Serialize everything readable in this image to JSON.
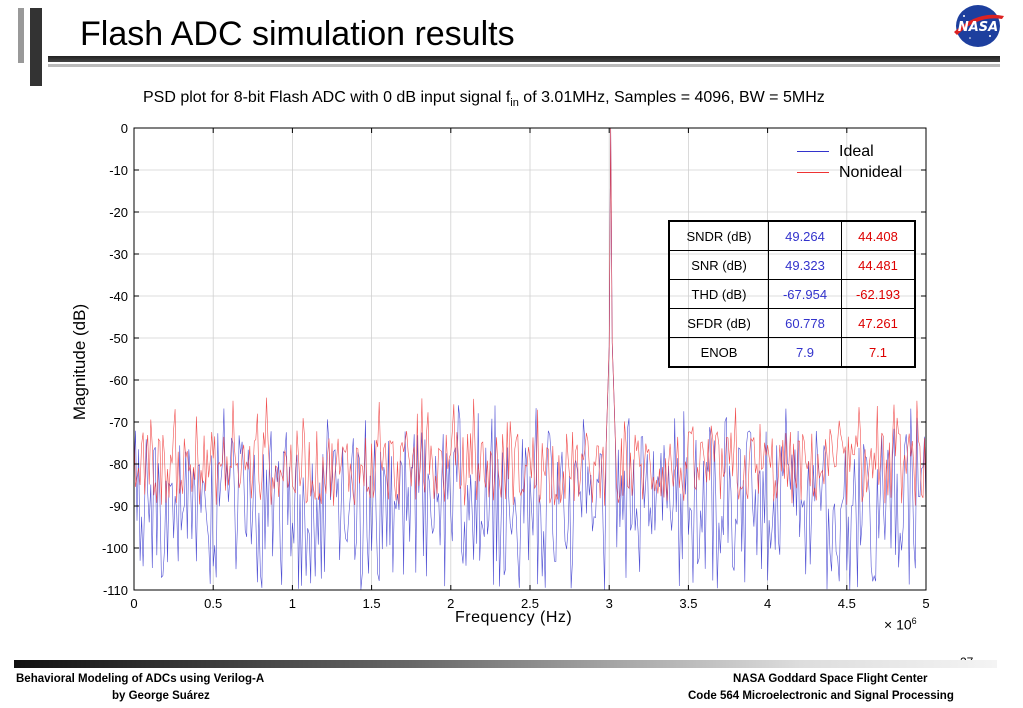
{
  "slide": {
    "title": "Flash ADC simulation results",
    "page_number": "27",
    "logo_text": "NASA",
    "footer": {
      "left_line1": "Behavioral Modeling of ADCs using Verilog-A",
      "left_line2": "by George Suárez",
      "right_line1": "NASA Goddard Space Flight Center",
      "right_line2": "Code 564 Microelectronic and Signal Processing"
    }
  },
  "chart_data": {
    "type": "line",
    "title_prefix": "PSD plot for 8-bit Flash ADC with 0 dB input signal f",
    "title_subscript": "in",
    "title_suffix": " of 3.01MHz, Samples = 4096, BW = 5MHz",
    "xlabel": "Frequency (Hz)",
    "x_multiplier_label": "× 10",
    "x_multiplier_exponent": "6",
    "ylabel": "Magnitude (dB)",
    "xlim": [
      0,
      5
    ],
    "ylim": [
      -110,
      0
    ],
    "x_ticks": [
      "0",
      "0.5",
      "1",
      "1.5",
      "2",
      "2.5",
      "3",
      "3.5",
      "4",
      "4.5",
      "5"
    ],
    "y_ticks": [
      "0",
      "-10",
      "-20",
      "-30",
      "-40",
      "-50",
      "-60",
      "-70",
      "-80",
      "-90",
      "-100",
      "-110"
    ],
    "grid": true,
    "legend_position": "top-right",
    "series": [
      {
        "name": "Ideal",
        "color": "#3333cc",
        "signal_frequency": 3.01,
        "signal_peak": 0,
        "noise_floor_mean": -85,
        "noise_floor_range": [
          -110,
          -63
        ]
      },
      {
        "name": "Nonideal",
        "color": "#ee3333",
        "signal_frequency": 3.01,
        "signal_peak": 0,
        "noise_floor_mean": -81,
        "noise_floor_range": [
          -95,
          -62
        ]
      }
    ],
    "metrics_table": {
      "rows": [
        {
          "label": "SNDR (dB)",
          "ideal": "49.264",
          "nonideal": "44.408"
        },
        {
          "label": "SNR (dB)",
          "ideal": "49.323",
          "nonideal": "44.481"
        },
        {
          "label": "THD (dB)",
          "ideal": "-67.954",
          "nonideal": "-62.193"
        },
        {
          "label": "SFDR (dB)",
          "ideal": "60.778",
          "nonideal": "47.261"
        },
        {
          "label": "ENOB",
          "ideal": "7.9",
          "nonideal": "7.1"
        }
      ]
    }
  }
}
